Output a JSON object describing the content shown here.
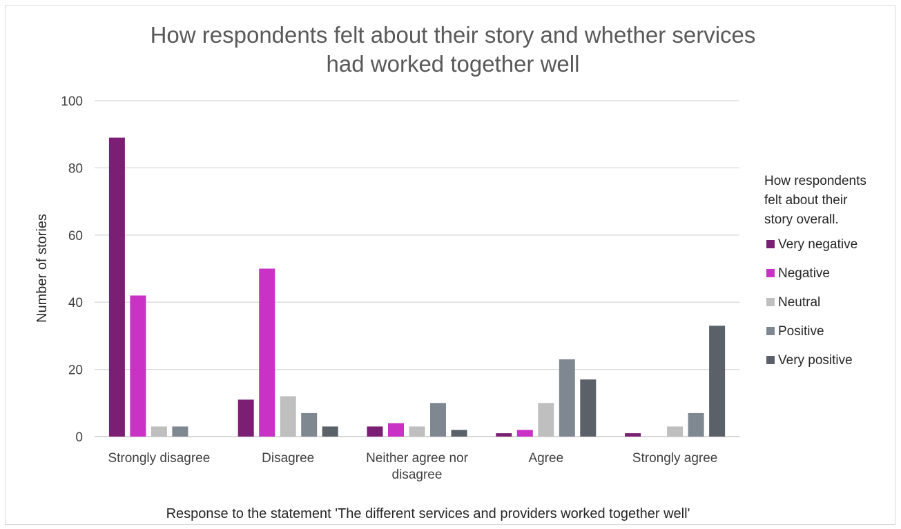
{
  "chart_data": {
    "type": "bar",
    "title_lines": [
      "How respondents felt about their story and whether services",
      "had worked together well"
    ],
    "xlabel": "Response to the statement 'The different services and providers worked together well'",
    "ylabel": "Number of stories",
    "ylim": [
      0,
      100
    ],
    "y_ticks": [
      0,
      20,
      40,
      60,
      80,
      100
    ],
    "grid": true,
    "categories": [
      [
        "Strongly disagree"
      ],
      [
        "Disagree"
      ],
      [
        "Neither agree nor",
        "disagree"
      ],
      [
        "Agree"
      ],
      [
        "Strongly agree"
      ]
    ],
    "legend": {
      "position": "right",
      "title_lines": [
        "How respondents",
        "felt about their",
        "story overall."
      ]
    },
    "series": [
      {
        "name": "Very negative",
        "color": "#7b1f74",
        "values": [
          89,
          11,
          3,
          1,
          1
        ]
      },
      {
        "name": "Negative",
        "color": "#c932c4",
        "values": [
          42,
          50,
          4,
          2,
          0
        ]
      },
      {
        "name": "Neutral",
        "color": "#bfbfbf",
        "values": [
          3,
          12,
          3,
          10,
          3
        ]
      },
      {
        "name": "Positive",
        "color": "#7f8891",
        "values": [
          3,
          7,
          10,
          23,
          7
        ]
      },
      {
        "name": "Very positive",
        "color": "#5b6168",
        "values": [
          0,
          3,
          2,
          17,
          33
        ]
      }
    ]
  }
}
